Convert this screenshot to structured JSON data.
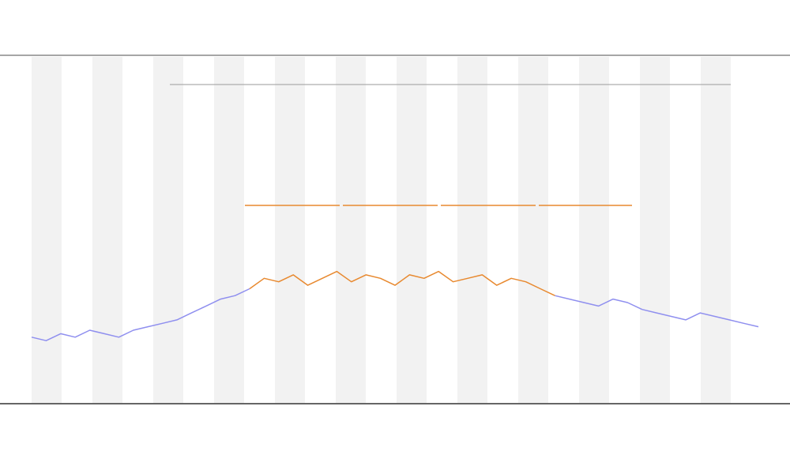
{
  "chart_data": {
    "type": "line",
    "x": [
      0,
      2,
      4,
      6,
      8,
      10,
      12,
      14,
      16,
      18,
      20,
      22,
      24,
      26,
      28,
      30,
      32,
      34,
      36,
      38,
      40,
      42,
      44,
      46,
      48,
      50,
      52,
      54,
      56,
      58,
      60,
      62,
      64,
      66,
      68,
      70,
      72,
      74,
      76,
      78,
      80,
      82,
      84,
      86,
      88,
      90,
      92,
      94,
      96,
      98,
      100
    ],
    "xlim": [
      0,
      100
    ],
    "ylim": [
      0,
      100
    ],
    "series": [
      {
        "color": "#8f8fef",
        "values": [
          19,
          18,
          20,
          19,
          21,
          20,
          19,
          21,
          22,
          23,
          24,
          26,
          28,
          30,
          31,
          33,
          null,
          null,
          null,
          null,
          null,
          null,
          null,
          null,
          null,
          null,
          null,
          null,
          null,
          null,
          null,
          null,
          null,
          null,
          null,
          null,
          31,
          30,
          29,
          28,
          30,
          29,
          27,
          26,
          25,
          24,
          26,
          25,
          24,
          23,
          22
        ]
      },
      {
        "color": "#e8892f",
        "values": [
          null,
          null,
          null,
          null,
          null,
          null,
          null,
          null,
          null,
          null,
          null,
          null,
          null,
          null,
          null,
          33,
          36,
          35,
          37,
          34,
          36,
          38,
          35,
          37,
          36,
          34,
          37,
          36,
          38,
          35,
          36,
          37,
          34,
          36,
          35,
          33,
          31,
          null,
          null,
          null,
          null,
          null,
          null,
          null,
          null,
          null,
          null,
          null,
          null,
          null,
          null
        ]
      }
    ]
  }
}
